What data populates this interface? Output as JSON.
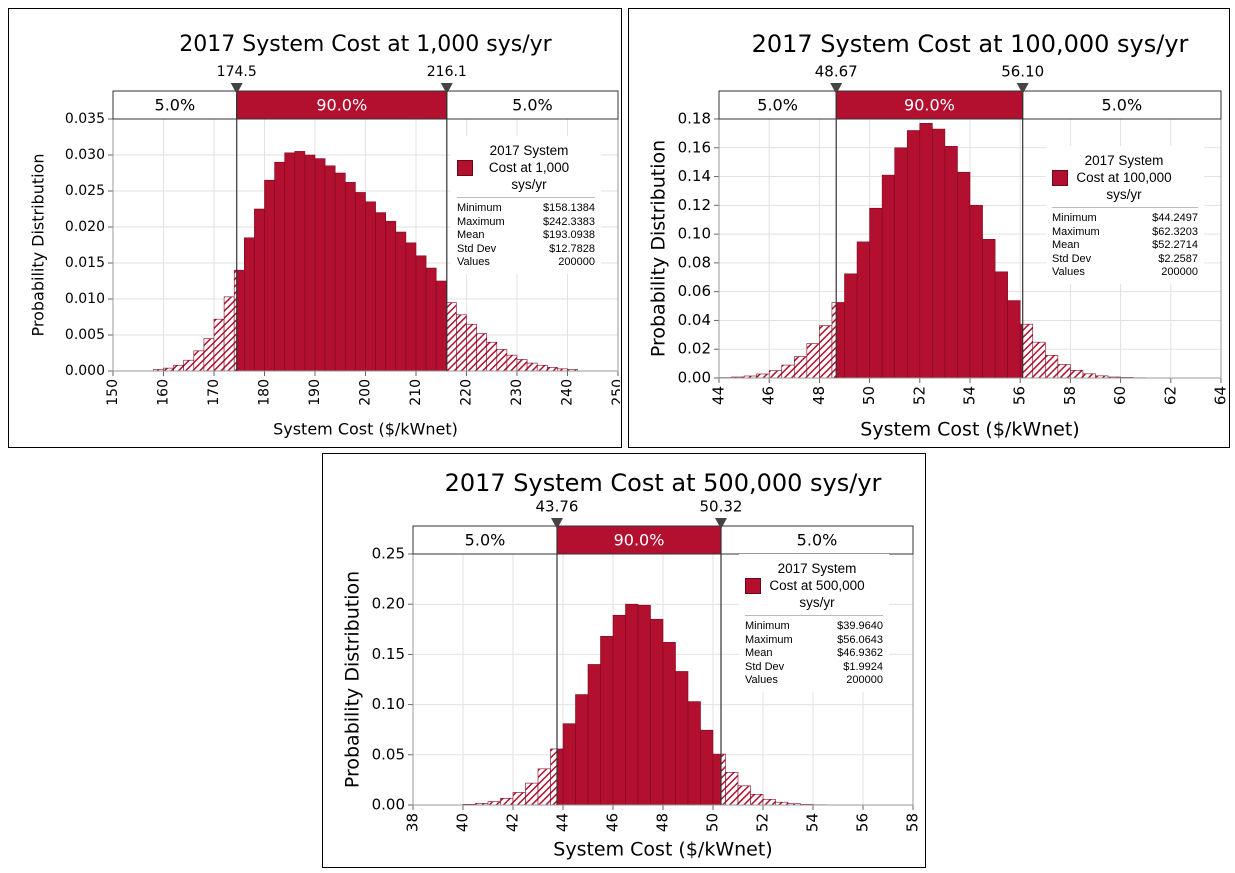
{
  "chart_data": [
    {
      "type": "histogram",
      "title": "2017 System Cost at 1,000 sys/yr",
      "x_label": "System Cost ($/kWnet)",
      "y_label": "Probability Distribution",
      "name": "2017 System Cost at 1,000 sys/yr",
      "color": "#b3102f",
      "bins": [
        158,
        160,
        162,
        164,
        166,
        168,
        170,
        172,
        174,
        176,
        178,
        180,
        182,
        184,
        186,
        188,
        190,
        192,
        194,
        196,
        198,
        200,
        202,
        204,
        206,
        208,
        210,
        212,
        214,
        216,
        218,
        220,
        222,
        224,
        226,
        228,
        230,
        232,
        234,
        236,
        238,
        240,
        242
      ],
      "values": [
        0.0002,
        0.0004,
        0.0008,
        0.0015,
        0.0028,
        0.0045,
        0.0072,
        0.0103,
        0.014,
        0.0185,
        0.0225,
        0.0265,
        0.029,
        0.0303,
        0.0305,
        0.03,
        0.0295,
        0.0285,
        0.0275,
        0.0262,
        0.0248,
        0.0235,
        0.022,
        0.0208,
        0.0193,
        0.0178,
        0.016,
        0.0143,
        0.0125,
        0.0095,
        0.0078,
        0.0065,
        0.0052,
        0.004,
        0.003,
        0.0022,
        0.0016,
        0.0011,
        0.0008,
        0.0005,
        0.0003,
        0.0002
      ],
      "xlim": [
        150,
        250
      ],
      "xticks": [
        150,
        160,
        170,
        180,
        190,
        200,
        210,
        220,
        230,
        240,
        250
      ],
      "ylim": [
        0,
        0.035
      ],
      "yticks": [
        {
          "value": 0,
          "label": "0.000"
        },
        0.005,
        {
          "value": 0.01,
          "label": "0.010"
        },
        0.015,
        {
          "value": 0.02,
          "label": "0.020"
        },
        0.025,
        {
          "value": 0.03,
          "label": "0.030"
        },
        0.035
      ],
      "grid": true,
      "delimiters": [
        174.5,
        216.1
      ],
      "band_labels": [
        "5.0%",
        "90.0%",
        "5.0%"
      ],
      "stats": [
        {
          "label": "Minimum",
          "value": "$158.1384"
        },
        {
          "label": "Maximum",
          "value": "$242.3383"
        },
        {
          "label": "Mean",
          "value": "$193.0938"
        },
        {
          "label": "Std Dev",
          "value": "$12.7828"
        },
        {
          "label": "Values",
          "value": "200000"
        }
      ]
    },
    {
      "type": "histogram",
      "title": "2017 System Cost at 100,000 sys/yr",
      "x_label": "System Cost ($/kWnet)",
      "y_label": "Probability Distribution",
      "name": "2017 System Cost at 100,000 sys/yr",
      "color": "#b3102f",
      "bins": [
        44,
        44.5,
        45,
        45.5,
        46,
        46.5,
        47,
        47.5,
        48,
        48.5,
        49,
        49.5,
        50,
        50.5,
        51,
        51.5,
        52,
        52.5,
        53,
        53.5,
        54,
        54.5,
        55,
        55.5,
        56,
        56.5,
        57,
        57.5,
        58,
        58.5,
        59,
        59.5,
        60,
        60.5,
        61,
        61.5,
        62,
        62.5
      ],
      "values": [
        0.0003,
        0.0007,
        0.0014,
        0.0028,
        0.0051,
        0.009,
        0.0149,
        0.0239,
        0.0364,
        0.0525,
        0.0724,
        0.0946,
        0.118,
        0.141,
        0.16,
        0.172,
        0.177,
        0.173,
        0.161,
        0.143,
        0.12,
        0.0964,
        0.0738,
        0.0538,
        0.0374,
        0.0249,
        0.0157,
        0.0094,
        0.0053,
        0.0029,
        0.0015,
        0.0007,
        0.0004,
        0.0002,
        0.0001,
        0.0001,
        0.0001
      ],
      "xlim": [
        44,
        64
      ],
      "xticks": [
        44,
        46,
        48,
        50,
        52,
        54,
        56,
        58,
        60,
        62,
        64
      ],
      "ylim": [
        0,
        0.18
      ],
      "yticks": [
        {
          "value": 0,
          "label": "0.00"
        },
        0.02,
        0.04,
        0.06,
        0.08,
        {
          "value": 0.1,
          "label": "0.10"
        },
        0.12,
        0.14,
        0.16,
        0.18
      ],
      "grid": true,
      "delimiters": [
        48.67,
        {
          "value": 56.1,
          "label": "56.10"
        }
      ],
      "band_labels": [
        "5.0%",
        "90.0%",
        "5.0%"
      ],
      "stats": [
        {
          "label": "Minimum",
          "value": "$44.2497"
        },
        {
          "label": "Maximum",
          "value": "$62.3203"
        },
        {
          "label": "Mean",
          "value": "$52.2714"
        },
        {
          "label": "Std Dev",
          "value": "$2.2587"
        },
        {
          "label": "Values",
          "value": "200000"
        }
      ]
    },
    {
      "type": "histogram",
      "title": "2017 System Cost at 500,000 sys/yr",
      "x_label": "System Cost ($/kWnet)",
      "y_label": "Probability Distribution",
      "name": "2017 System Cost at 500,000 sys/yr",
      "color": "#b3102f",
      "bins": [
        40,
        40.5,
        41,
        41.5,
        42,
        42.5,
        43,
        43.5,
        44,
        44.5,
        45,
        45.5,
        46,
        46.5,
        47,
        47.5,
        48,
        48.5,
        49,
        49.5,
        50,
        50.5,
        51,
        51.5,
        52,
        52.5,
        53,
        53.5,
        54,
        54.5,
        55,
        55.5,
        56
      ],
      "values": [
        0.0007,
        0.0016,
        0.0034,
        0.0067,
        0.0125,
        0.0218,
        0.036,
        0.0558,
        0.081,
        0.11,
        0.14,
        0.168,
        0.189,
        0.2,
        0.199,
        0.185,
        0.162,
        0.133,
        0.103,
        0.0745,
        0.0507,
        0.0325,
        0.0191,
        0.0107,
        0.0057,
        0.0028,
        0.0013,
        0.0006,
        0.0003,
        0.0001,
        0.0001,
        0.0001
      ],
      "xlim": [
        38,
        58
      ],
      "xticks": [
        38,
        40,
        42,
        44,
        46,
        48,
        50,
        52,
        54,
        56,
        58
      ],
      "ylim": [
        0,
        0.25
      ],
      "yticks": [
        {
          "value": 0,
          "label": "0.00"
        },
        0.05,
        {
          "value": 0.1,
          "label": "0.10"
        },
        0.15,
        {
          "value": 0.2,
          "label": "0.20"
        },
        0.25
      ],
      "grid": true,
      "delimiters": [
        43.76,
        50.32
      ],
      "band_labels": [
        "5.0%",
        "90.0%",
        "5.0%"
      ],
      "stats": [
        {
          "label": "Minimum",
          "value": "$39.9640"
        },
        {
          "label": "Maximum",
          "value": "$56.0643"
        },
        {
          "label": "Mean",
          "value": "$46.9362"
        },
        {
          "label": "Std Dev",
          "value": "$1.9924"
        },
        {
          "label": "Values",
          "value": "200000"
        }
      ]
    }
  ]
}
